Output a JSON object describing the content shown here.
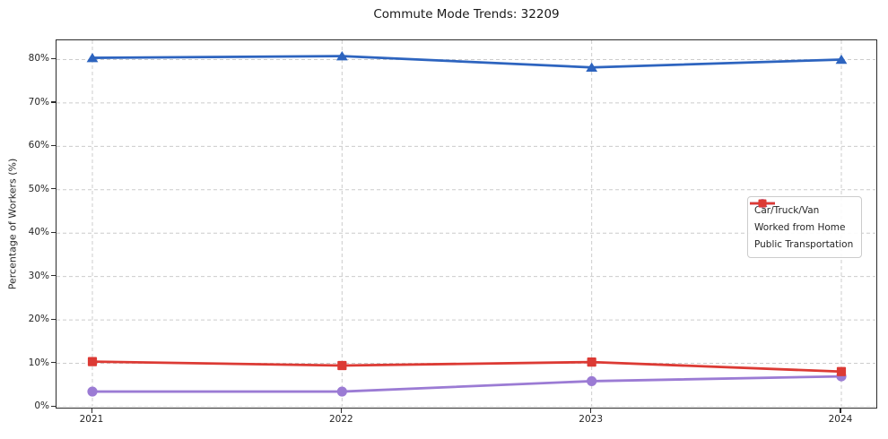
{
  "chart_data": {
    "type": "line",
    "title": "Commute Mode Trends: 32209",
    "xlabel": "",
    "ylabel": "Percentage of Workers (%)",
    "categories": [
      "2021",
      "2022",
      "2023",
      "2024"
    ],
    "x": [
      2021,
      2022,
      2023,
      2024
    ],
    "series": [
      {
        "name": "Car/Truck/Van",
        "marker": "triangle",
        "color": "#2d64bf",
        "values": [
          80.4,
          80.8,
          78.2,
          80.0
        ]
      },
      {
        "name": "Worked from Home",
        "marker": "circle",
        "color": "#9b7bd4",
        "values": [
          3.5,
          3.5,
          5.9,
          7.0
        ]
      },
      {
        "name": "Public Transportation",
        "marker": "square",
        "color": "#dc3a34",
        "values": [
          10.4,
          9.5,
          10.3,
          8.1
        ]
      }
    ],
    "yticks": [
      0,
      10,
      20,
      30,
      40,
      50,
      60,
      70,
      80
    ],
    "ytick_labels": [
      "0%",
      "10%",
      "20%",
      "30%",
      "40%",
      "50%",
      "60%",
      "70%",
      "80%"
    ],
    "ylim": [
      -0.6,
      84.4
    ],
    "grid": true,
    "grid_style": "dashed",
    "legend_position": "right-middle",
    "colors": {
      "grid": "#cccccc",
      "spine": "#2b2b2b",
      "text": "#262626",
      "background": "#ffffff"
    }
  }
}
